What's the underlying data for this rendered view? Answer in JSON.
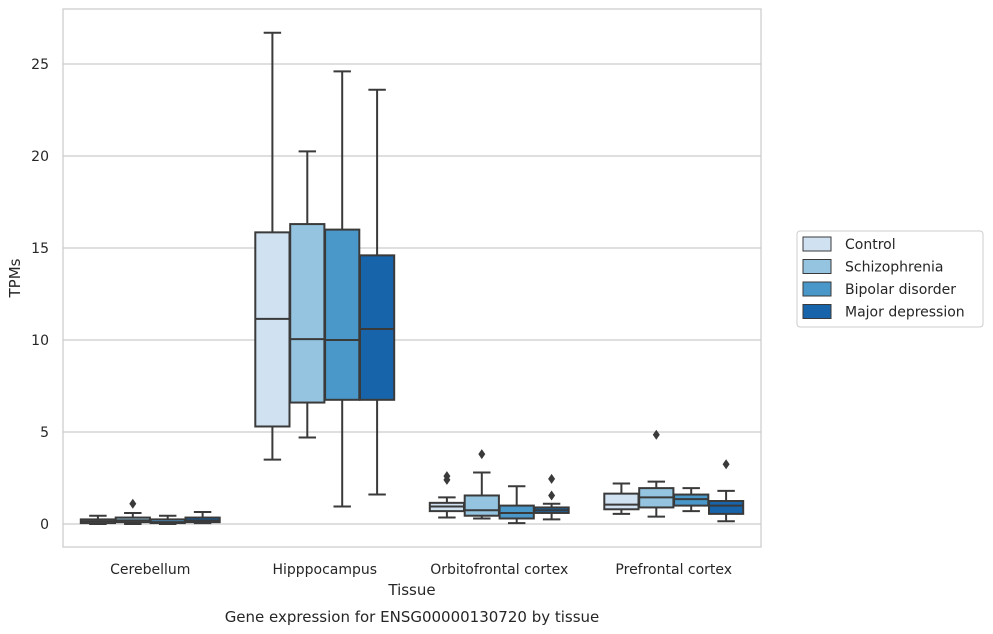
{
  "chart_data": {
    "type": "box",
    "xlabel": "Tissue",
    "ylabel": "TPMs",
    "caption": "Gene expression for ENSG00000130720 by tissue",
    "categories": [
      "Cerebellum",
      "Hipppocampus",
      "Orbitofrontal cortex",
      "Prefrontal cortex"
    ],
    "ylim": [
      -1.2,
      28.2
    ],
    "yticks": [
      0,
      5,
      10,
      15,
      20,
      25
    ],
    "grid": true,
    "legend_position": "right",
    "series": [
      {
        "name": "Control",
        "color": "#d0e1f2",
        "boxes": [
          {
            "whislo": 0.0,
            "q1": 0.05,
            "med": 0.15,
            "q3": 0.25,
            "whishi": 0.45,
            "fliers": []
          },
          {
            "whislo": 3.5,
            "q1": 5.3,
            "med": 11.15,
            "q3": 15.85,
            "whishi": 26.7,
            "fliers": []
          },
          {
            "whislo": 0.35,
            "q1": 0.7,
            "med": 0.95,
            "q3": 1.15,
            "whishi": 1.45,
            "fliers": [
              2.4,
              2.6
            ]
          },
          {
            "whislo": 0.55,
            "q1": 0.8,
            "med": 1.05,
            "q3": 1.65,
            "whishi": 2.2,
            "fliers": []
          }
        ]
      },
      {
        "name": "Schizophrenia",
        "color": "#94c4df",
        "boxes": [
          {
            "whislo": 0.0,
            "q1": 0.1,
            "med": 0.2,
            "q3": 0.35,
            "whishi": 0.6,
            "fliers": [
              1.1
            ]
          },
          {
            "whislo": 4.7,
            "q1": 6.6,
            "med": 10.05,
            "q3": 16.3,
            "whishi": 20.25,
            "fliers": []
          },
          {
            "whislo": 0.3,
            "q1": 0.45,
            "med": 0.75,
            "q3": 1.55,
            "whishi": 2.8,
            "fliers": [
              3.8
            ]
          },
          {
            "whislo": 0.4,
            "q1": 0.9,
            "med": 1.45,
            "q3": 1.95,
            "whishi": 2.3,
            "fliers": [
              4.85
            ]
          }
        ]
      },
      {
        "name": "Bipolar disorder",
        "color": "#4a98c9",
        "boxes": [
          {
            "whislo": 0.0,
            "q1": 0.05,
            "med": 0.1,
            "q3": 0.25,
            "whishi": 0.45,
            "fliers": []
          },
          {
            "whislo": 0.95,
            "q1": 6.75,
            "med": 10.0,
            "q3": 16.0,
            "whishi": 24.6,
            "fliers": []
          },
          {
            "whislo": 0.05,
            "q1": 0.3,
            "med": 0.6,
            "q3": 1.0,
            "whishi": 2.05,
            "fliers": []
          },
          {
            "whislo": 0.7,
            "q1": 1.0,
            "med": 1.35,
            "q3": 1.6,
            "whishi": 1.95,
            "fliers": []
          }
        ]
      },
      {
        "name": "Major depression",
        "color": "#1764ab",
        "boxes": [
          {
            "whislo": 0.05,
            "q1": 0.1,
            "med": 0.2,
            "q3": 0.35,
            "whishi": 0.65,
            "fliers": []
          },
          {
            "whislo": 1.6,
            "q1": 6.75,
            "med": 10.6,
            "q3": 14.6,
            "whishi": 23.6,
            "fliers": []
          },
          {
            "whislo": 0.25,
            "q1": 0.6,
            "med": 0.75,
            "q3": 0.9,
            "whishi": 1.1,
            "fliers": [
              1.55,
              2.45
            ]
          },
          {
            "whislo": 0.15,
            "q1": 0.55,
            "med": 1.0,
            "q3": 1.25,
            "whishi": 1.8,
            "fliers": [
              3.25
            ]
          }
        ]
      }
    ]
  }
}
